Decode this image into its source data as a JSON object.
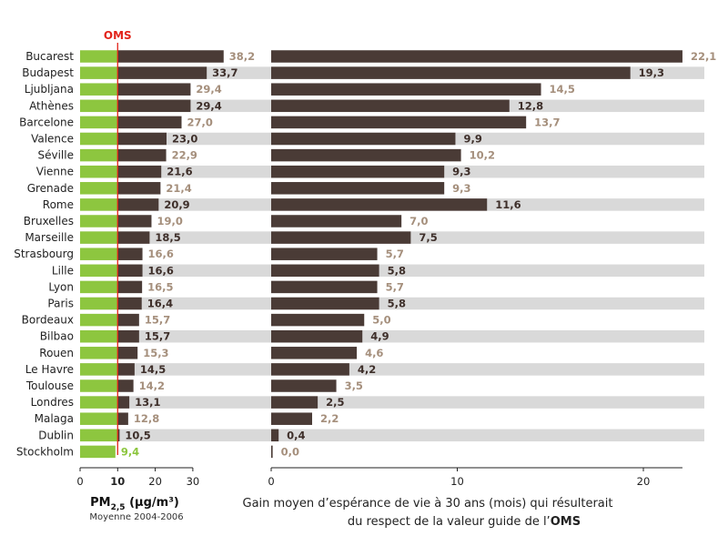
{
  "chart_data": {
    "type": "bar",
    "categories": [
      "Bucarest",
      "Budapest",
      "Ljubljana",
      "Athènes",
      "Barcelone",
      "Valence",
      "Séville",
      "Vienne",
      "Grenade",
      "Rome",
      "Bruxelles",
      "Marseille",
      "Strasbourg",
      "Lille",
      "Lyon",
      "Paris",
      "Bordeaux",
      "Bilbao",
      "Rouen",
      "Le Havre",
      "Toulouse",
      "Londres",
      "Malaga",
      "Dublin",
      "Stockholm"
    ],
    "oms_label": "OMS",
    "oms_value": 10,
    "left_panel": {
      "values": [
        38.2,
        33.7,
        29.4,
        29.4,
        27.0,
        23.0,
        22.9,
        21.6,
        21.4,
        20.9,
        19.0,
        18.5,
        16.6,
        16.6,
        16.5,
        16.4,
        15.7,
        15.7,
        15.3,
        14.5,
        14.2,
        13.1,
        12.8,
        10.5,
        9.4
      ],
      "value_labels": [
        "38,2",
        "33,7",
        "29,4",
        "29,4",
        "27,0",
        "23,0",
        "22,9",
        "21,6",
        "21,4",
        "20,9",
        "19,0",
        "18,5",
        "16,6",
        "16,6",
        "16,5",
        "16,4",
        "15,7",
        "15,7",
        "15,3",
        "14,5",
        "14,2",
        "13,1",
        "12,8",
        "10,5",
        "9,4"
      ],
      "xlim": [
        0,
        40
      ],
      "ticks": [
        0,
        10,
        20,
        30
      ],
      "tick_labels": [
        "0",
        "10",
        "20",
        "30"
      ],
      "xlabel_main": "PM",
      "xlabel_sub": "2,5",
      "xlabel_unit": " (µg/m³)",
      "xlabel_note": "Moyenne 2004-2006"
    },
    "right_panel": {
      "values": [
        22.1,
        19.3,
        14.5,
        12.8,
        13.7,
        9.9,
        10.2,
        9.3,
        9.3,
        11.6,
        7.0,
        7.5,
        5.7,
        5.8,
        5.7,
        5.8,
        5.0,
        4.9,
        4.6,
        4.2,
        3.5,
        2.5,
        2.2,
        0.4,
        0.0
      ],
      "value_labels": [
        "22,1",
        "19,3",
        "14,5",
        "12,8",
        "13,7",
        "9,9",
        "10,2",
        "9,3",
        "9,3",
        "11,6",
        "7,0",
        "7,5",
        "5,7",
        "5,8",
        "5,7",
        "5,8",
        "5,0",
        "4,9",
        "4,6",
        "4,2",
        "3,5",
        "2,5",
        "2,2",
        "0,4",
        "0,0"
      ],
      "xlim": [
        0,
        22.1
      ],
      "ticks": [
        0,
        10,
        20
      ],
      "tick_labels": [
        "0",
        "10",
        "20"
      ],
      "xlabel_line1": "Gain moyen d’espérance de vie à 30 ans (mois) qui résulterait",
      "xlabel_line2_prefix": "du respect de la valeur guide de l’",
      "xlabel_line2_bold": "OMS"
    },
    "colors": {
      "below_guideline": "#8dc63f",
      "above_guideline": "#4a3b36",
      "value_label_light": "#a58f7c",
      "value_label_dark": "#3e2f2a",
      "value_label_green": "#8dc63f",
      "oms_line": "#e2231a",
      "stripe": "#d9d9d9"
    }
  }
}
